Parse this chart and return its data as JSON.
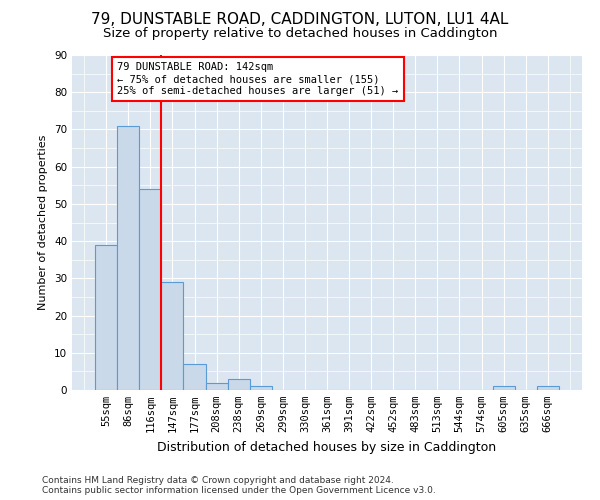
{
  "title1": "79, DUNSTABLE ROAD, CADDINGTON, LUTON, LU1 4AL",
  "title2": "Size of property relative to detached houses in Caddington",
  "xlabel": "Distribution of detached houses by size in Caddington",
  "ylabel": "Number of detached properties",
  "bar_labels": [
    "55sqm",
    "86sqm",
    "116sqm",
    "147sqm",
    "177sqm",
    "208sqm",
    "238sqm",
    "269sqm",
    "299sqm",
    "330sqm",
    "361sqm",
    "391sqm",
    "422sqm",
    "452sqm",
    "483sqm",
    "513sqm",
    "544sqm",
    "574sqm",
    "605sqm",
    "635sqm",
    "666sqm"
  ],
  "bar_values": [
    39,
    71,
    54,
    29,
    7,
    2,
    3,
    1,
    0,
    0,
    0,
    0,
    0,
    0,
    0,
    0,
    0,
    0,
    1,
    0,
    1
  ],
  "bar_color": "#c9d9ea",
  "bar_edge_color": "#5b9bd5",
  "vline_color": "red",
  "vline_pos": 2.5,
  "ylim": [
    0,
    90
  ],
  "yticks": [
    0,
    10,
    20,
    30,
    40,
    50,
    60,
    70,
    80,
    90
  ],
  "annotation_line1": "79 DUNSTABLE ROAD: 142sqm",
  "annotation_line2": "← 75% of detached houses are smaller (155)",
  "annotation_line3": "25% of semi-detached houses are larger (51) →",
  "annotation_box_color": "red",
  "footer": "Contains HM Land Registry data © Crown copyright and database right 2024.\nContains public sector information licensed under the Open Government Licence v3.0.",
  "bg_color": "#dce6f1",
  "grid_color": "white",
  "title1_fontsize": 11,
  "title2_fontsize": 9.5,
  "ylabel_fontsize": 8,
  "xlabel_fontsize": 9,
  "tick_fontsize": 7.5
}
